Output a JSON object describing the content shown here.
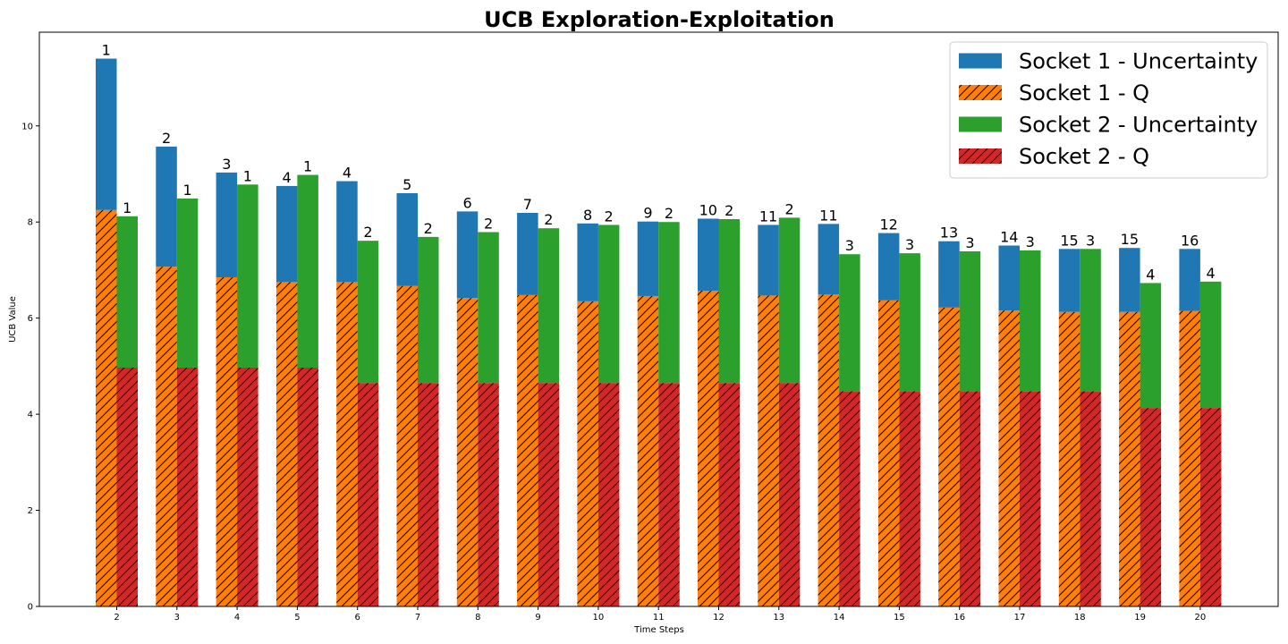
{
  "chart_data": {
    "type": "bar",
    "title": "UCB Exploration-Exploitation",
    "xlabel": "Time Steps",
    "ylabel": "UCB Value",
    "ylim": [
      0,
      11.95
    ],
    "yticks": [
      0,
      2,
      4,
      6,
      8,
      10
    ],
    "grid": false,
    "legend_position": "top-right",
    "categories": [
      "2",
      "3",
      "4",
      "5",
      "6",
      "7",
      "8",
      "9",
      "10",
      "11",
      "12",
      "13",
      "14",
      "15",
      "16",
      "17",
      "18",
      "19",
      "20"
    ],
    "colors": {
      "socket1_uncertainty": "#1f77b4",
      "socket1_q": "#ff7f0e",
      "socket2_uncertainty": "#2ca02c",
      "socket2_q": "#d62728"
    },
    "series": [
      {
        "name": "Socket 1 - Uncertainty",
        "stack": "socket1",
        "color": "#1f77b4",
        "hatch": false,
        "values": [
          3.15,
          2.5,
          2.18,
          2.0,
          2.1,
          1.93,
          1.8,
          1.71,
          1.62,
          1.55,
          1.5,
          1.47,
          1.47,
          1.4,
          1.38,
          1.35,
          1.31,
          1.33,
          1.29
        ]
      },
      {
        "name": "Socket 1 - Q",
        "stack": "socket1",
        "color": "#ff7f0e",
        "hatch": true,
        "values": [
          8.25,
          7.07,
          6.85,
          6.75,
          6.75,
          6.67,
          6.42,
          6.48,
          6.35,
          6.46,
          6.57,
          6.47,
          6.49,
          6.37,
          6.22,
          6.16,
          6.13,
          6.13,
          6.15
        ]
      },
      {
        "name": "Socket 2 - Uncertainty",
        "stack": "socket2",
        "color": "#2ca02c",
        "hatch": false,
        "values": [
          3.15,
          3.52,
          3.81,
          4.01,
          2.96,
          3.04,
          3.14,
          3.22,
          3.29,
          3.35,
          3.41,
          3.44,
          2.85,
          2.87,
          2.91,
          2.93,
          2.96,
          2.6,
          2.63
        ]
      },
      {
        "name": "Socket 2 - Q",
        "stack": "socket2",
        "color": "#d62728",
        "hatch": true,
        "values": [
          4.97,
          4.97,
          4.97,
          4.97,
          4.65,
          4.65,
          4.65,
          4.65,
          4.65,
          4.65,
          4.65,
          4.65,
          4.48,
          4.48,
          4.48,
          4.48,
          4.48,
          4.13,
          4.13
        ]
      }
    ],
    "annotations": {
      "socket1_counts": [
        "1",
        "2",
        "3",
        "4",
        "4",
        "5",
        "6",
        "7",
        "8",
        "9",
        "10",
        "11",
        "11",
        "12",
        "13",
        "14",
        "15",
        "15",
        "16"
      ],
      "socket2_counts": [
        "1",
        "1",
        "1",
        "1",
        "2",
        "2",
        "2",
        "2",
        "2",
        "2",
        "2",
        "2",
        "3",
        "3",
        "3",
        "3",
        "3",
        "4",
        "4"
      ]
    }
  }
}
